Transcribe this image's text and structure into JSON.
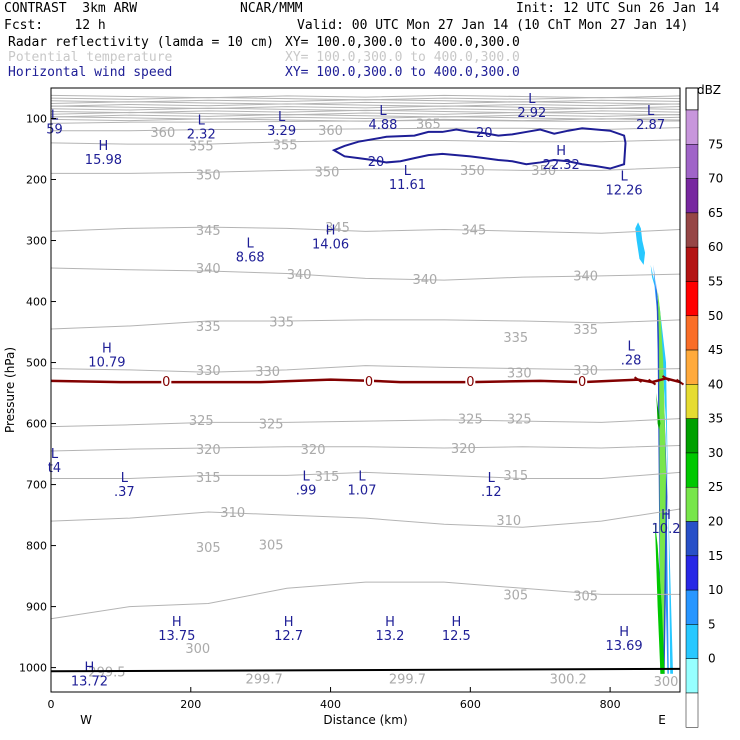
{
  "header": {
    "model": "CONTRAST  3km ARW",
    "center": "NCAR/MMM",
    "init": "Init: 12 UTC Sun 26 Jan 14",
    "fcst": "Fcst:    12 h",
    "valid": "Valid: 00 UTC Mon 27 Jan 14 (10 ChT Mon 27 Jan 14)",
    "fields": [
      {
        "name": "Radar reflectivity (lamda = 10 cm)",
        "xy": "XY= 100.0,300.0 to 400.0,300.0",
        "color": "#000000"
      },
      {
        "name": "Potential temperature",
        "xy": "XY= 100.0,300.0 to 400.0,300.0",
        "color": "#c8c8c8"
      },
      {
        "name": "Horizontal wind speed",
        "xy": "XY= 100.0,300.0 to 400.0,300.0",
        "color": "#1e1e96"
      }
    ]
  },
  "chart_data": {
    "type": "cross-section",
    "xlabel": "Distance (km)",
    "ylabel": "Pressure (hPa)",
    "xlim": [
      0,
      900
    ],
    "ylim": [
      1040,
      50
    ],
    "x_ticks": [
      0,
      200,
      400,
      600,
      800
    ],
    "y_ticks": [
      100,
      200,
      300,
      400,
      500,
      600,
      700,
      800,
      900,
      1000
    ],
    "endpoint_labels": {
      "left": "W",
      "right": "E"
    },
    "theta_contours": [
      {
        "value": 305,
        "p": [
          920,
          900,
          895,
          870,
          860,
          860,
          870,
          880,
          880
        ]
      },
      {
        "value": 310,
        "p": [
          760,
          755,
          745,
          750,
          755,
          765,
          770,
          760,
          740
        ]
      },
      {
        "value": 315,
        "p": [
          690,
          690,
          685,
          685,
          680,
          685,
          690,
          690,
          680
        ]
      },
      {
        "value": 320,
        "p": [
          645,
          642,
          640,
          638,
          638,
          640,
          638,
          640,
          636
        ]
      },
      {
        "value": 325,
        "p": [
          605,
          602,
          598,
          598,
          596,
          594,
          596,
          598,
          592
        ]
      },
      {
        "value": 330,
        "p": [
          510,
          512,
          516,
          512,
          505,
          508,
          510,
          512,
          510
        ]
      },
      {
        "value": 335,
        "p": [
          445,
          440,
          432,
          432,
          430,
          430,
          432,
          435,
          430
        ]
      },
      {
        "value": 340,
        "p": [
          345,
          348,
          350,
          354,
          362,
          365,
          360,
          358,
          355
        ]
      },
      {
        "value": 345,
        "p": [
          285,
          280,
          278,
          280,
          285,
          282,
          285,
          288,
          282
        ]
      },
      {
        "value": 350,
        "p": [
          190,
          190,
          188,
          185,
          183,
          183,
          185,
          185,
          180
        ]
      },
      {
        "value": 355,
        "p": [
          140,
          142,
          142,
          138,
          136,
          136,
          138,
          138,
          135
        ]
      },
      {
        "value": 360,
        "p": [
          120,
          120,
          118,
          118,
          117,
          116,
          116,
          118,
          115
        ]
      },
      {
        "value": 365,
        "p": [
          108,
          106,
          106,
          105,
          104,
          103,
          104,
          105,
          104
        ]
      }
    ],
    "theta_labels": [
      {
        "text": "360",
        "x": 160,
        "p": 122
      },
      {
        "text": "360",
        "x": 400,
        "p": 119
      },
      {
        "text": "365",
        "x": 540,
        "p": 108
      },
      {
        "text": "355",
        "x": 215,
        "p": 144
      },
      {
        "text": "355",
        "x": 335,
        "p": 143
      },
      {
        "text": "350",
        "x": 225,
        "p": 192
      },
      {
        "text": "350",
        "x": 395,
        "p": 187
      },
      {
        "text": "350",
        "x": 603,
        "p": 184
      },
      {
        "text": "350",
        "x": 705,
        "p": 184
      },
      {
        "text": "345",
        "x": 225,
        "p": 283
      },
      {
        "text": "345",
        "x": 410,
        "p": 278
      },
      {
        "text": "345",
        "x": 605,
        "p": 282
      },
      {
        "text": "340",
        "x": 225,
        "p": 345
      },
      {
        "text": "340",
        "x": 355,
        "p": 355
      },
      {
        "text": "340",
        "x": 535,
        "p": 363
      },
      {
        "text": "340",
        "x": 765,
        "p": 357
      },
      {
        "text": "335",
        "x": 225,
        "p": 440
      },
      {
        "text": "335",
        "x": 330,
        "p": 433
      },
      {
        "text": "335",
        "x": 665,
        "p": 458
      },
      {
        "text": "335",
        "x": 765,
        "p": 445
      },
      {
        "text": "330",
        "x": 225,
        "p": 512
      },
      {
        "text": "330",
        "x": 310,
        "p": 514
      },
      {
        "text": "330",
        "x": 670,
        "p": 516
      },
      {
        "text": "330",
        "x": 765,
        "p": 512
      },
      {
        "text": "325",
        "x": 215,
        "p": 594
      },
      {
        "text": "325",
        "x": 315,
        "p": 600
      },
      {
        "text": "325",
        "x": 600,
        "p": 592
      },
      {
        "text": "325",
        "x": 670,
        "p": 592
      },
      {
        "text": "320",
        "x": 225,
        "p": 642
      },
      {
        "text": "320",
        "x": 375,
        "p": 642
      },
      {
        "text": "320",
        "x": 590,
        "p": 640
      },
      {
        "text": "315",
        "x": 225,
        "p": 688
      },
      {
        "text": "315",
        "x": 395,
        "p": 686
      },
      {
        "text": "315",
        "x": 665,
        "p": 684
      },
      {
        "text": "310",
        "x": 260,
        "p": 745
      },
      {
        "text": "310",
        "x": 655,
        "p": 758
      },
      {
        "text": "305",
        "x": 225,
        "p": 802
      },
      {
        "text": "305",
        "x": 315,
        "p": 798
      },
      {
        "text": "305",
        "x": 665,
        "p": 880
      },
      {
        "text": "305",
        "x": 765,
        "p": 882
      },
      {
        "text": "300",
        "x": 210,
        "p": 968
      },
      {
        "text": "300",
        "x": 880,
        "p": 1022
      },
      {
        "text": "299.5",
        "x": 80,
        "p": 1006
      },
      {
        "text": "299.7",
        "x": 305,
        "p": 1018
      },
      {
        "text": "299.7",
        "x": 510,
        "p": 1018
      },
      {
        "text": "300.2",
        "x": 740,
        "p": 1018
      }
    ],
    "wind_contours": [
      {
        "value": 20,
        "x": [
          405,
          420,
          440,
          480,
          520,
          540,
          560,
          580,
          600,
          620,
          640,
          660,
          680,
          700,
          720,
          740,
          760,
          780,
          800,
          820,
          822,
          820,
          800,
          780,
          760,
          740,
          720,
          700,
          680,
          660,
          640,
          620,
          600,
          580,
          560,
          540,
          520,
          500,
          480,
          460,
          440,
          420,
          405
        ],
        "p": [
          152,
          145,
          138,
          130,
          128,
          122,
          122,
          118,
          122,
          124,
          128,
          126,
          122,
          118,
          125,
          120,
          116,
          118,
          120,
          128,
          140,
          175,
          182,
          178,
          175,
          170,
          168,
          172,
          175,
          170,
          168,
          165,
          162,
          160,
          158,
          160,
          165,
          170,
          172,
          168,
          165,
          162,
          152
        ]
      }
    ],
    "wind_contour_labels": [
      {
        "text": "20",
        "x": 465,
        "p": 170
      },
      {
        "text": "20",
        "x": 620,
        "p": 122
      }
    ],
    "zero_contour": {
      "value": 0,
      "x": [
        0,
        100,
        200,
        300,
        400,
        460,
        500,
        600,
        700,
        760,
        800,
        840,
        860,
        880,
        900
      ],
      "p": [
        530,
        532,
        532,
        532,
        528,
        530,
        532,
        532,
        530,
        532,
        530,
        528,
        532,
        526,
        532
      ]
    },
    "zero_labels": [
      {
        "text": "0",
        "x": 165
      },
      {
        "text": "0",
        "x": 455
      },
      {
        "text": "0",
        "x": 600
      },
      {
        "text": "0",
        "x": 760
      }
    ],
    "wind_extrema": [
      {
        "type": "L",
        "value": "59",
        "x": 5,
        "p": 108
      },
      {
        "type": "H",
        "value": "15.98",
        "x": 75,
        "p": 158
      },
      {
        "type": "L",
        "value": "2.32",
        "x": 215,
        "p": 116
      },
      {
        "type": "L",
        "value": "3.29",
        "x": 330,
        "p": 111
      },
      {
        "type": "L",
        "value": "4.88",
        "x": 475,
        "p": 101
      },
      {
        "type": "L",
        "value": "2.92",
        "x": 688,
        "p": 81
      },
      {
        "type": "L",
        "value": "2.87",
        "x": 858,
        "p": 101
      },
      {
        "type": "H",
        "value": "22.32",
        "x": 730,
        "p": 166
      },
      {
        "type": "L",
        "value": "11.61",
        "x": 510,
        "p": 199
      },
      {
        "type": "L",
        "value": "12.26",
        "x": 820,
        "p": 208
      },
      {
        "type": "H",
        "value": "14.06",
        "x": 400,
        "p": 297
      },
      {
        "type": "L",
        "value": "8.68",
        "x": 285,
        "p": 318
      },
      {
        "type": "H",
        "value": "10.79",
        "x": 80,
        "p": 490
      },
      {
        "type": "L",
        "value": ".28",
        "x": 830,
        "p": 487
      },
      {
        "type": "L",
        "value": "t4",
        "x": 5,
        "p": 663
      },
      {
        "type": "L",
        "value": ".37",
        "x": 105,
        "p": 702
      },
      {
        "type": "L",
        "value": ".99",
        "x": 365,
        "p": 700
      },
      {
        "type": "L",
        "value": "1.07",
        "x": 445,
        "p": 700
      },
      {
        "type": "L",
        "value": ".12",
        "x": 630,
        "p": 702
      },
      {
        "type": "H",
        "value": "10.2",
        "x": 880,
        "p": 763
      },
      {
        "type": "H",
        "value": "13.75",
        "x": 180,
        "p": 938
      },
      {
        "type": "H",
        "value": "12.7",
        "x": 340,
        "p": 938
      },
      {
        "type": "H",
        "value": "13.2",
        "x": 485,
        "p": 938
      },
      {
        "type": "H",
        "value": "12.5",
        "x": 580,
        "p": 938
      },
      {
        "type": "H",
        "value": "13.69",
        "x": 820,
        "p": 955
      },
      {
        "type": "H",
        "value": "13.72",
        "x": 55,
        "p": 1013
      }
    ],
    "reflectivity": [
      {
        "dbz": 5,
        "x": [
          836,
          838,
          842,
          848,
          850,
          846,
          844,
          840,
          836
        ],
        "p": [
          280,
          300,
          330,
          340,
          320,
          300,
          280,
          270,
          280
        ]
      },
      {
        "dbz": 5,
        "x": [
          858,
          860,
          870,
          880,
          890,
          886,
          884,
          880,
          870,
          862,
          858
        ],
        "p": [
          340,
          360,
          400,
          600,
          1010,
          1010,
          800,
          500,
          400,
          360,
          340
        ]
      },
      {
        "dbz": 10,
        "x": [
          862,
          866,
          872,
          880,
          884,
          882,
          876,
          870,
          864,
          862
        ],
        "p": [
          340,
          380,
          450,
          650,
          1010,
          1010,
          700,
          450,
          380,
          340
        ]
      },
      {
        "dbz": 20,
        "x": [
          866,
          870,
          876,
          882,
          878,
          872,
          868,
          866
        ],
        "p": [
          370,
          420,
          520,
          720,
          1010,
          1010,
          480,
          370
        ]
      },
      {
        "dbz": 25,
        "x": [
          868,
          872,
          876,
          880,
          876,
          872,
          870,
          868
        ],
        "p": [
          380,
          420,
          500,
          680,
          1010,
          1010,
          460,
          380
        ]
      },
      {
        "dbz": 30,
        "x": [
          864,
          868,
          874,
          878,
          876,
          872,
          868,
          864
        ],
        "p": [
          760,
          800,
          900,
          1010,
          1010,
          1010,
          900,
          760
        ]
      },
      {
        "dbz": 35,
        "x": [
          866,
          868,
          872,
          870,
          868,
          866
        ],
        "p": [
          550,
          570,
          600,
          610,
          600,
          550
        ]
      }
    ],
    "colorbar": {
      "unit": "dBZ",
      "levels": [
        0,
        5,
        10,
        15,
        20,
        25,
        30,
        35,
        40,
        45,
        50,
        55,
        60,
        65,
        70,
        75
      ],
      "colors": [
        "#ffffff",
        "#96ffff",
        "#28c8ff",
        "#2896ff",
        "#2828e6",
        "#2850c8",
        "#78e64b",
        "#00c800",
        "#00a000",
        "#e6dc32",
        "#ffaa3c",
        "#fa6e28",
        "#ff0000",
        "#b41414",
        "#964646",
        "#7828a0",
        "#a064c8",
        "#c896dc"
      ]
    },
    "colors": {
      "theta": "#b4b4b4",
      "wind": "#1e1e96",
      "zero": "#820000",
      "ground": "#000000"
    }
  }
}
